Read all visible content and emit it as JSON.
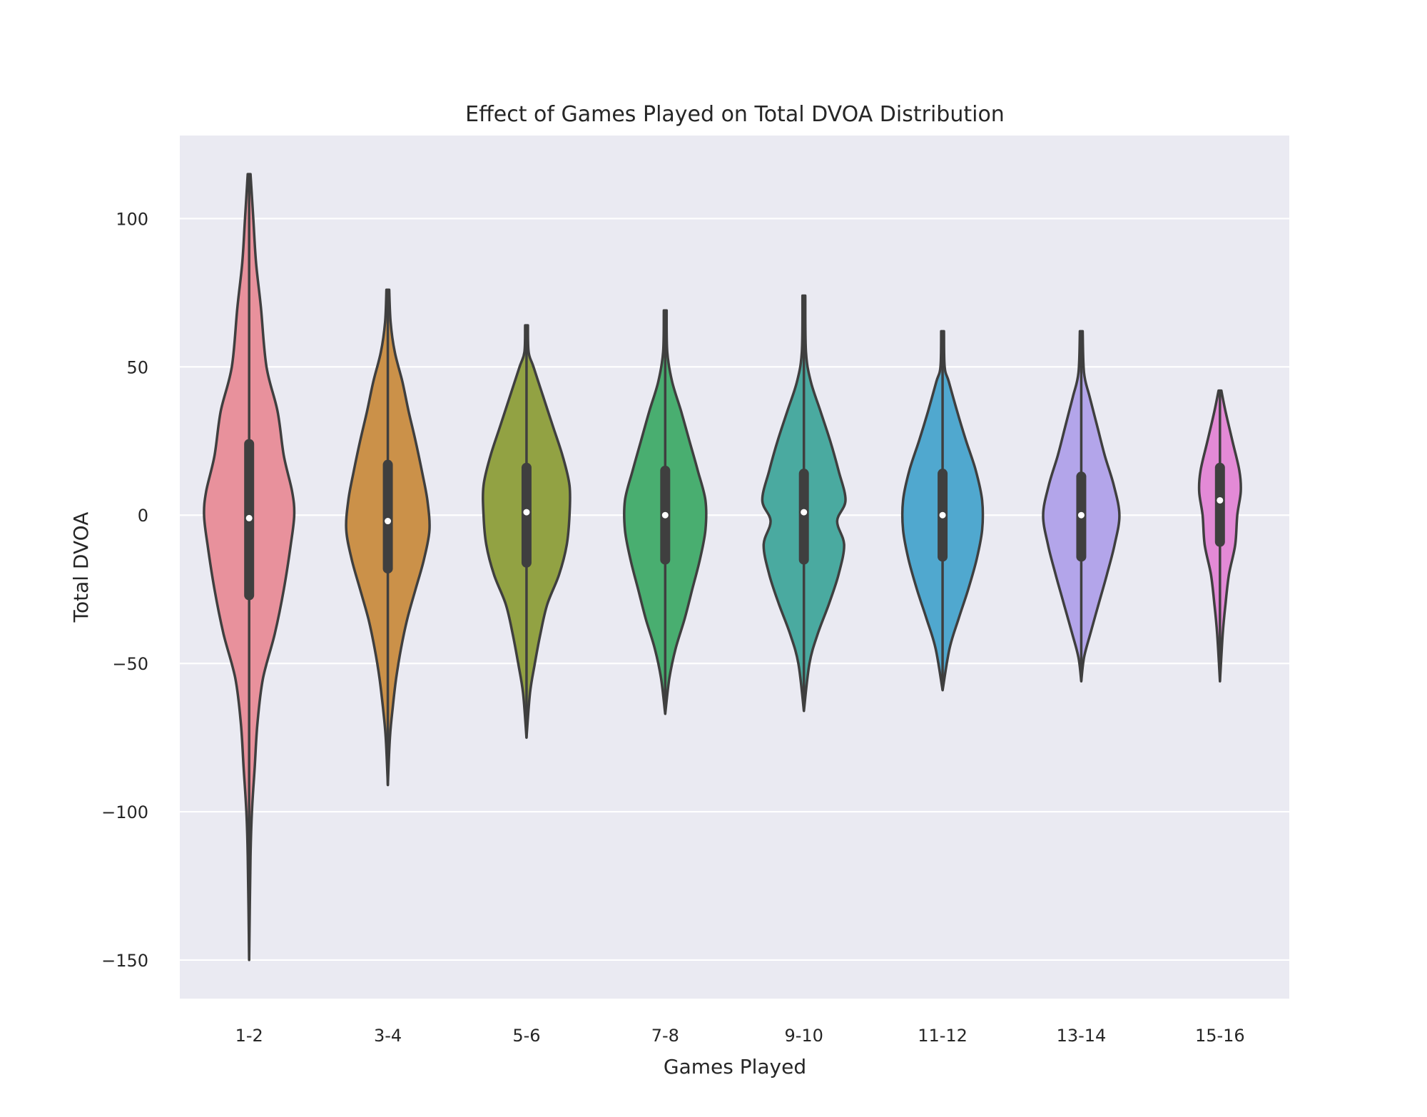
{
  "chart_data": {
    "type": "violin",
    "title": "Effect of Games Played on Total DVOA Distribution",
    "xlabel": "Games Played",
    "ylabel": "Total DVOA",
    "ylim": [
      -163,
      128
    ],
    "yticks": [
      100,
      50,
      0,
      -50,
      -100,
      -150
    ],
    "ytick_labels": [
      "100",
      "50",
      "0",
      "−50",
      "−100",
      "−150"
    ],
    "grid": true,
    "colors": {
      "background": "#eaeaf2",
      "grid": "#ffffff",
      "outline": "#3f3f3f",
      "median": "#ffffff"
    },
    "categories": [
      "1-2",
      "3-4",
      "5-6",
      "7-8",
      "9-10",
      "11-12",
      "13-14",
      "15-16"
    ],
    "violins": [
      {
        "category": "1-2",
        "color": "#e8919c",
        "min": -150,
        "max": 115,
        "q1": -27,
        "median": -1,
        "q3": 24,
        "profile": [
          [
            115,
            0.02
          ],
          [
            100,
            0.06
          ],
          [
            85,
            0.1
          ],
          [
            70,
            0.17
          ],
          [
            50,
            0.25
          ],
          [
            35,
            0.41
          ],
          [
            20,
            0.5
          ],
          [
            8,
            0.62
          ],
          [
            0,
            0.65
          ],
          [
            -10,
            0.6
          ],
          [
            -25,
            0.5
          ],
          [
            -40,
            0.37
          ],
          [
            -55,
            0.2
          ],
          [
            -70,
            0.12
          ],
          [
            -85,
            0.08
          ],
          [
            -100,
            0.04
          ],
          [
            -115,
            0.02
          ],
          [
            -150,
            0.0
          ]
        ]
      },
      {
        "category": "3-4",
        "color": "#cb9149",
        "min": -91,
        "max": 76,
        "q1": -18,
        "median": -2,
        "q3": 17,
        "profile": [
          [
            76,
            0.02
          ],
          [
            65,
            0.04
          ],
          [
            55,
            0.1
          ],
          [
            45,
            0.21
          ],
          [
            35,
            0.3
          ],
          [
            25,
            0.4
          ],
          [
            15,
            0.49
          ],
          [
            5,
            0.57
          ],
          [
            -5,
            0.6
          ],
          [
            -15,
            0.52
          ],
          [
            -25,
            0.4
          ],
          [
            -35,
            0.28
          ],
          [
            -45,
            0.19
          ],
          [
            -55,
            0.12
          ],
          [
            -65,
            0.07
          ],
          [
            -75,
            0.03
          ],
          [
            -91,
            0.0
          ]
        ]
      },
      {
        "category": "5-6",
        "color": "#92a243",
        "min": -75,
        "max": 64,
        "q1": -16,
        "median": 1,
        "q3": 16,
        "profile": [
          [
            64,
            0.02
          ],
          [
            55,
            0.03
          ],
          [
            50,
            0.1
          ],
          [
            40,
            0.24
          ],
          [
            30,
            0.38
          ],
          [
            20,
            0.52
          ],
          [
            10,
            0.62
          ],
          [
            0,
            0.62
          ],
          [
            -10,
            0.58
          ],
          [
            -20,
            0.47
          ],
          [
            -30,
            0.3
          ],
          [
            -40,
            0.2
          ],
          [
            -50,
            0.12
          ],
          [
            -60,
            0.05
          ],
          [
            -75,
            0.0
          ]
        ]
      },
      {
        "category": "7-8",
        "color": "#49ae70",
        "min": -67,
        "max": 69,
        "q1": -15,
        "median": 0,
        "q3": 15,
        "profile": [
          [
            69,
            0.02
          ],
          [
            55,
            0.03
          ],
          [
            45,
            0.1
          ],
          [
            35,
            0.23
          ],
          [
            25,
            0.35
          ],
          [
            15,
            0.47
          ],
          [
            5,
            0.58
          ],
          [
            -5,
            0.58
          ],
          [
            -15,
            0.5
          ],
          [
            -25,
            0.39
          ],
          [
            -35,
            0.28
          ],
          [
            -45,
            0.15
          ],
          [
            -55,
            0.06
          ],
          [
            -67,
            0.0
          ]
        ]
      },
      {
        "category": "9-10",
        "color": "#4aaaa0",
        "min": -66,
        "max": 74,
        "q1": -15,
        "median": 1,
        "q3": 14,
        "profile": [
          [
            74,
            0.02
          ],
          [
            55,
            0.03
          ],
          [
            45,
            0.1
          ],
          [
            35,
            0.24
          ],
          [
            25,
            0.38
          ],
          [
            15,
            0.5
          ],
          [
            5,
            0.6
          ],
          [
            -2,
            0.48
          ],
          [
            -10,
            0.58
          ],
          [
            -20,
            0.5
          ],
          [
            -30,
            0.36
          ],
          [
            -40,
            0.2
          ],
          [
            -50,
            0.08
          ],
          [
            -66,
            0.0
          ]
        ]
      },
      {
        "category": "11-12",
        "color": "#50a8cf",
        "min": -59,
        "max": 62,
        "q1": -14,
        "median": 0,
        "q3": 14,
        "profile": [
          [
            62,
            0.02
          ],
          [
            50,
            0.03
          ],
          [
            45,
            0.09
          ],
          [
            35,
            0.21
          ],
          [
            25,
            0.34
          ],
          [
            15,
            0.48
          ],
          [
            5,
            0.57
          ],
          [
            -5,
            0.57
          ],
          [
            -15,
            0.49
          ],
          [
            -25,
            0.37
          ],
          [
            -35,
            0.23
          ],
          [
            -45,
            0.1
          ],
          [
            -59,
            0.0
          ]
        ]
      },
      {
        "category": "13-14",
        "color": "#b3a5ea",
        "min": -56,
        "max": 62,
        "q1": -14,
        "median": 0,
        "q3": 13,
        "profile": [
          [
            62,
            0.02
          ],
          [
            48,
            0.04
          ],
          [
            40,
            0.12
          ],
          [
            30,
            0.23
          ],
          [
            20,
            0.34
          ],
          [
            10,
            0.47
          ],
          [
            0,
            0.55
          ],
          [
            -10,
            0.48
          ],
          [
            -20,
            0.37
          ],
          [
            -30,
            0.25
          ],
          [
            -40,
            0.13
          ],
          [
            -48,
            0.04
          ],
          [
            -56,
            0.0
          ]
        ]
      },
      {
        "category": "15-16",
        "color": "#e38ad6",
        "min": -56,
        "max": 42,
        "q1": -9,
        "median": 5,
        "q3": 16,
        "profile": [
          [
            42,
            0.02
          ],
          [
            35,
            0.08
          ],
          [
            25,
            0.18
          ],
          [
            15,
            0.28
          ],
          [
            8,
            0.3
          ],
          [
            0,
            0.25
          ],
          [
            -10,
            0.22
          ],
          [
            -20,
            0.13
          ],
          [
            -30,
            0.08
          ],
          [
            -40,
            0.04
          ],
          [
            -56,
            0.0
          ]
        ]
      }
    ]
  }
}
